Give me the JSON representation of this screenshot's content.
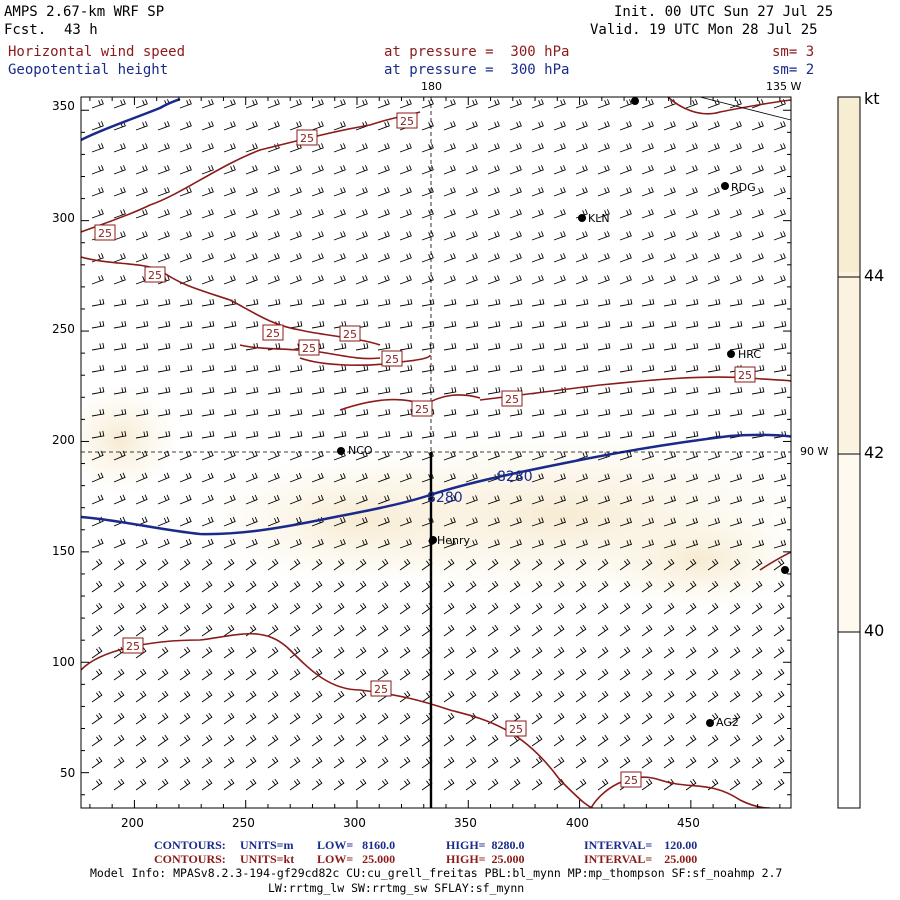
{
  "header": {
    "model": "AMPS 2.67-km WRF SP",
    "fcst_label": "Fcst.",
    "fcst_value": "43 h",
    "init": "Init. 00 UTC Sun 27 Jul 25",
    "valid": "Valid. 19 UTC Mon 28 Jul 25",
    "field1_name": "Horizontal wind speed",
    "field1_level": "at pressure =  300 hPa",
    "field1_sm": "sm= 3",
    "field2_name": "Geopotential height",
    "field2_level": "at pressure =  300 hPa",
    "field2_sm": "sm= 2"
  },
  "map": {
    "x_ticks": [
      "200",
      "250",
      "300",
      "350",
      "400",
      "450"
    ],
    "y_ticks": [
      "350",
      "300",
      "250",
      "200",
      "150",
      "100",
      "50"
    ],
    "x_range": [
      176,
      495
    ],
    "y_range": [
      34,
      356
    ],
    "meridian_top_label": "180",
    "corner_label": "135 W",
    "side_label": "90 W",
    "stations": [
      "RDG",
      "KLN",
      "HRC",
      "NCO",
      "Henry",
      "AG2"
    ],
    "height_contour_labels": [
      "8280",
      "8280"
    ],
    "wind_contour_label": "25"
  },
  "colorbar": {
    "unit": "kt",
    "labels": [
      "44",
      "42",
      "40"
    ],
    "colors": [
      "#f7edd3",
      "#fbf3df",
      "#fffaf0",
      "#ffffff"
    ]
  },
  "footer": {
    "line1_name": "CONTOURS:",
    "line1_units": "UNITS=m",
    "line1_low": "LOW=   8160.0",
    "line1_high": "HIGH=  8280.0",
    "line1_interval": "INTERVAL=    120.00",
    "line2_name": "CONTOURS:",
    "line2_units": "UNITS=kt",
    "line2_low": "LOW=   25.000",
    "line2_high": "HIGH=  25.000",
    "line2_interval": "INTERVAL=    25.000",
    "model_info": "Model Info: MPASv8.2.3-194-gf29cd82c CU:cu_grell_freitas PBL:bl_mynn MP:mp_thompson SF:sf_noahmp 2.7",
    "model_info2": "LW:rrtmg_lw SW:rrtmg_sw SFLAY:sf_mynn"
  },
  "colors": {
    "wind_contour": "#8b1a1a",
    "height_contour": "#1a2a8b",
    "header_red": "#8b1a1a",
    "header_blue": "#1a2a8b"
  }
}
